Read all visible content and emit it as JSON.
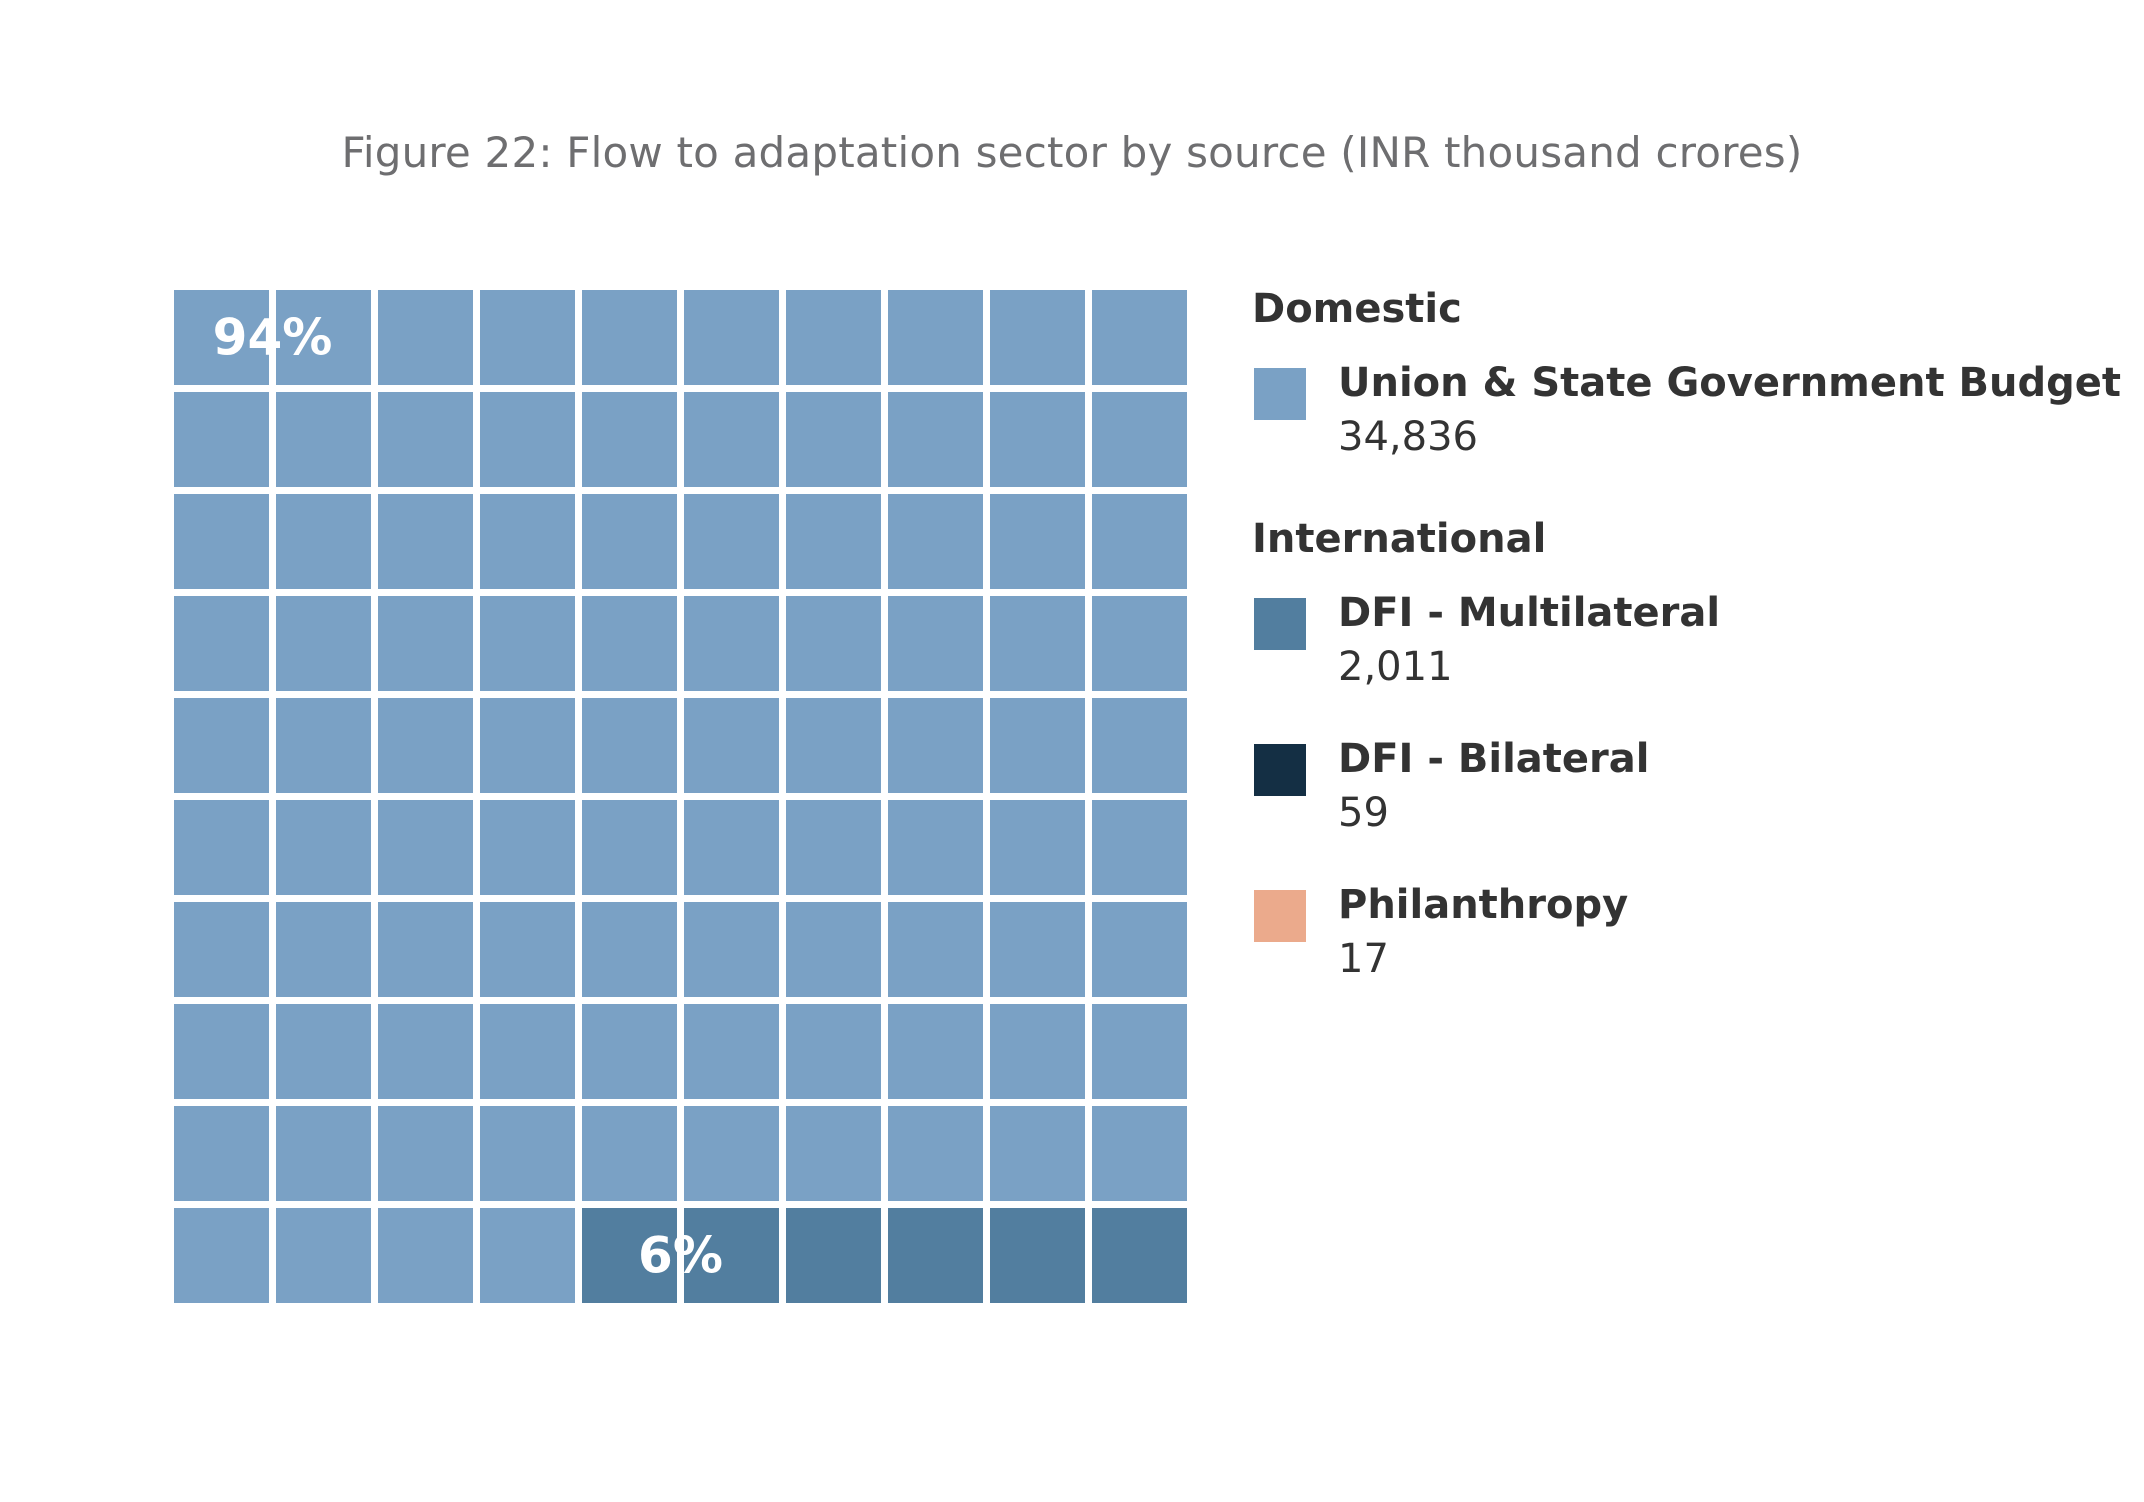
{
  "title": "Figure 22: Flow to adaptation sector by source (INR thousand crores)",
  "chart_data": {
    "type": "waffle",
    "grid": {
      "rows": 10,
      "cols": 10
    },
    "annotations": [
      {
        "text": "94%",
        "series": "Union & State Government Budget"
      },
      {
        "text": "6%",
        "series": "DFI - Multilateral"
      }
    ],
    "cells": [
      {
        "name": "Union & State Government Budget",
        "count": 94,
        "color": "#7aa1c5"
      },
      {
        "name": "DFI - Multilateral",
        "count": 6,
        "color": "#527e9f"
      }
    ],
    "legend": [
      {
        "group": "Domestic",
        "items": [
          {
            "name": "Union & State Government Budget",
            "value": "34,836",
            "color": "#7aa1c5"
          }
        ]
      },
      {
        "group": "International",
        "items": [
          {
            "name": "DFI - Multilateral",
            "value": "2,011",
            "color": "#527e9f"
          },
          {
            "name": "DFI - Bilateral",
            "value": "59",
            "color": "#142f44"
          },
          {
            "name": "Philanthropy",
            "value": "17",
            "color": "#ebaa8c"
          }
        ]
      }
    ]
  }
}
